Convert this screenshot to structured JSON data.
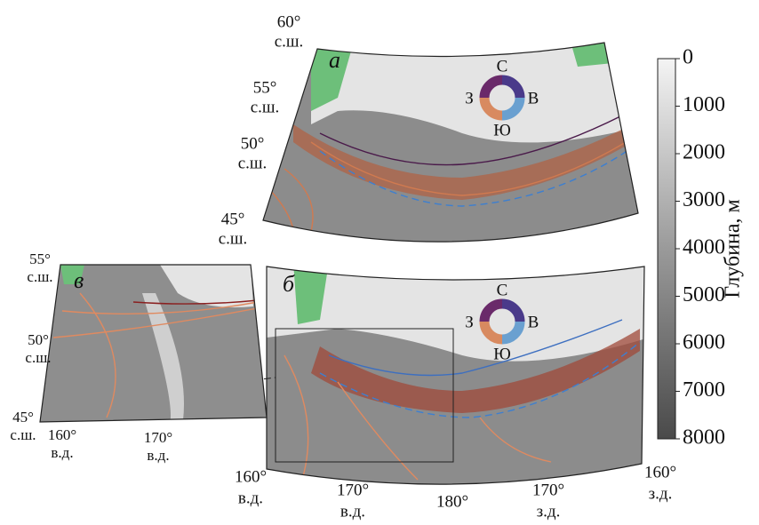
{
  "panel_a": {
    "label": "а",
    "lat_labels": [
      [
        "60°",
        "с.ш."
      ],
      [
        "55°",
        "с.ш."
      ],
      [
        "50°",
        "с.ш."
      ],
      [
        "45°",
        "с.ш."
      ]
    ],
    "compass": {
      "n": "С",
      "e": "В",
      "s": "Ю",
      "w": "З"
    }
  },
  "panel_b": {
    "label": "б",
    "lon_labels": [
      [
        "160°",
        "в.д."
      ],
      [
        "170°",
        "в.д."
      ],
      [
        "180°"
      ],
      [
        "170°",
        "з.д."
      ],
      [
        "160°",
        "з.д."
      ]
    ],
    "compass": {
      "n": "С",
      "e": "В",
      "s": "Ю",
      "w": "З"
    }
  },
  "panel_c": {
    "label": "в",
    "lat_labels": [
      [
        "55°",
        "с.ш."
      ],
      [
        "50°",
        "с.ш."
      ],
      [
        "45°",
        "с.ш."
      ]
    ],
    "lon_labels": [
      [
        "160°",
        "в.д."
      ],
      [
        "170°",
        "в.д."
      ]
    ]
  },
  "colorbar": {
    "label": "Глубина, м",
    "lim": [
      0,
      8000
    ],
    "ticks": [
      0,
      1000,
      2000,
      3000,
      4000,
      5000,
      6000,
      7000,
      8000
    ]
  }
}
